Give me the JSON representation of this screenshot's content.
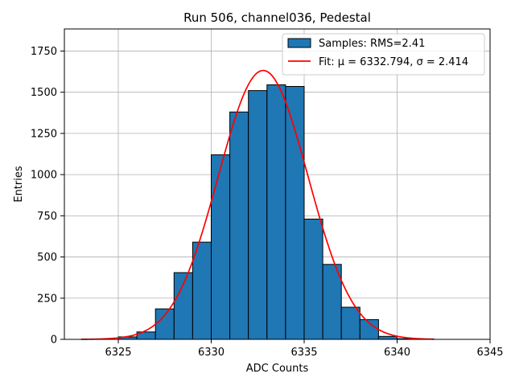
{
  "chart_data": {
    "type": "bar",
    "title": "Run 506, channel036, Pedestal",
    "xlabel": "ADC Counts",
    "ylabel": "Entries",
    "xlim": [
      6322.1,
      6345.0
    ],
    "ylim": [
      0,
      1884
    ],
    "xticks": [
      6325,
      6330,
      6335,
      6340,
      6345
    ],
    "yticks": [
      0,
      250,
      500,
      750,
      1000,
      1250,
      1500,
      1750
    ],
    "grid": true,
    "legend_position": "upper right",
    "histogram": {
      "name": "Samples: RMS=2.41",
      "color": "#1f77b4",
      "edgecolor": "#000000",
      "bin_edges": [
        6325,
        6326,
        6327,
        6328,
        6329,
        6330,
        6331,
        6332,
        6333,
        6334,
        6335,
        6336,
        6337,
        6338,
        6339,
        6340,
        6341
      ],
      "counts": [
        15,
        45,
        185,
        405,
        590,
        1120,
        1380,
        1510,
        1545,
        1535,
        730,
        455,
        195,
        120,
        18,
        4
      ]
    },
    "fit": {
      "name": "Fit: μ = 6332.794, σ = 2.414",
      "color": "#ff0000",
      "type": "gaussian",
      "mu": 6332.794,
      "sigma": 2.414,
      "amplitude": 1632,
      "x_range": [
        6323,
        6342
      ]
    }
  }
}
